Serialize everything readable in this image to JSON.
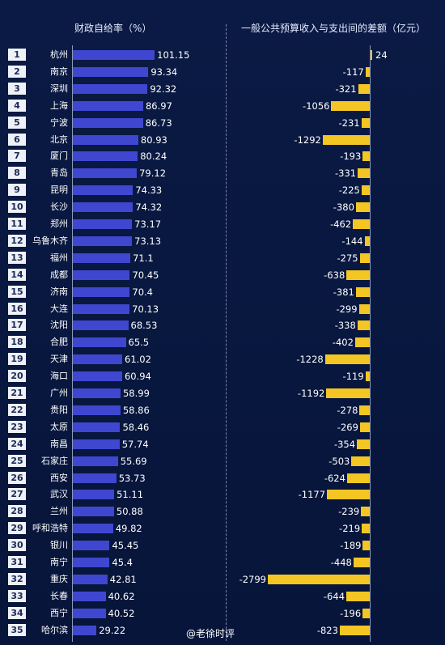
{
  "chart_data": {
    "type": "bar",
    "left_title": "财政自给率（%）",
    "right_title": "一般公共预算收入与支出间的差额（亿元）",
    "ranks": [
      "1",
      "2",
      "3",
      "4",
      "5",
      "6",
      "7",
      "8",
      "9",
      "10",
      "11",
      "12",
      "13",
      "14",
      "15",
      "16",
      "17",
      "18",
      "19",
      "20",
      "21",
      "22",
      "23",
      "24",
      "25",
      "26",
      "27",
      "28",
      "29",
      "30",
      "31",
      "32",
      "33",
      "34",
      "35"
    ],
    "categories": [
      "杭州",
      "南京",
      "深圳",
      "上海",
      "宁波",
      "北京",
      "厦门",
      "青岛",
      "昆明",
      "长沙",
      "郑州",
      "乌鲁木齐",
      "福州",
      "成都",
      "济南",
      "大连",
      "沈阳",
      "合肥",
      "天津",
      "海口",
      "广州",
      "贵阳",
      "太原",
      "南昌",
      "石家庄",
      "西安",
      "武汉",
      "兰州",
      "呼和浩特",
      "银川",
      "南宁",
      "重庆",
      "长春",
      "西宁",
      "哈尔滨"
    ],
    "self_sufficiency": [
      101.15,
      93.34,
      92.32,
      86.97,
      86.73,
      80.93,
      80.24,
      79.12,
      74.33,
      74.32,
      73.17,
      73.13,
      71.1,
      70.45,
      70.4,
      70.13,
      68.53,
      65.5,
      61.02,
      60.94,
      58.99,
      58.86,
      58.46,
      57.74,
      55.69,
      53.73,
      51.11,
      50.88,
      49.82,
      45.45,
      45.4,
      42.81,
      40.62,
      40.52,
      29.22
    ],
    "self_sufficiency_labels": [
      "101.15",
      "93.34",
      "92.32",
      "86.97",
      "86.73",
      "80.93",
      "80.24",
      "79.12",
      "74.33",
      "74.32",
      "73.17",
      "73.13",
      "71.1",
      "70.45",
      "70.4",
      "70.13",
      "68.53",
      "65.5",
      "61.02",
      "60.94",
      "58.99",
      "58.86",
      "58.46",
      "57.74",
      "55.69",
      "53.73",
      "51.11",
      "50.88",
      "49.82",
      "45.45",
      "45.4",
      "42.81",
      "40.62",
      "40.52",
      "29.22"
    ],
    "gap": [
      24,
      -117,
      -321,
      -1056,
      -231,
      -1292,
      -193,
      -331,
      -225,
      -380,
      -462,
      -144,
      -275,
      -638,
      -381,
      -299,
      -338,
      -402,
      -1228,
      -119,
      -1192,
      -278,
      -269,
      -354,
      -503,
      -624,
      -1177,
      -239,
      -219,
      -189,
      -448,
      -2799,
      -644,
      -196,
      -823
    ],
    "gap_labels": [
      "24",
      "-117",
      "-321",
      "-1056",
      "-231",
      "-1292",
      "-193",
      "-331",
      "-225",
      "-380",
      "-462",
      "-144",
      "-275",
      "-638",
      "-381",
      "-299",
      "-338",
      "-402",
      "-1228",
      "-119",
      "-1192",
      "-278",
      "-269",
      "-354",
      "-503",
      "-624",
      "-1177",
      "-239",
      "-219",
      "-189",
      "-448",
      "-2799",
      "-644",
      "-196",
      "-823"
    ],
    "colors": {
      "left_bar": "#3f47d0",
      "right_bar": "#f3c623",
      "background": "#08163a"
    }
  },
  "watermark": "@老徐时评"
}
